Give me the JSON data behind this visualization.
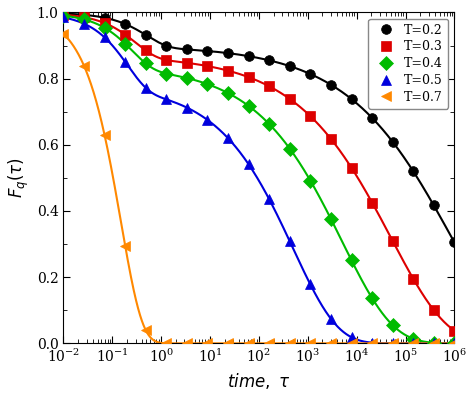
{
  "title": "",
  "xlabel": "time, \\tau",
  "ylabel": "F_q(\\tau)",
  "xlim": [
    0.01,
    1000000.0
  ],
  "ylim": [
    -0.02,
    1.05
  ],
  "series": [
    {
      "label": "T=0.2",
      "color": "#000000",
      "marker": "o",
      "tau1": 0.5,
      "beta1": 1.0,
      "f_plateau": 0.9,
      "tau2": 800000.0,
      "beta2": 0.35
    },
    {
      "label": "T=0.3",
      "color": "#dd0000",
      "marker": "s",
      "tau1": 0.3,
      "beta1": 1.0,
      "f_plateau": 0.87,
      "tau2": 50000.0,
      "beta2": 0.38
    },
    {
      "label": "T=0.4",
      "color": "#00bb00",
      "marker": "D",
      "tau1": 0.25,
      "beta1": 1.0,
      "f_plateau": 0.84,
      "tau2": 5000.0,
      "beta2": 0.42
    },
    {
      "label": "T=0.5",
      "color": "#0000dd",
      "marker": "^",
      "tau1": 0.2,
      "beta1": 1.0,
      "f_plateau": 0.78,
      "tau2": 500.0,
      "beta2": 0.48
    },
    {
      "label": "T=0.7",
      "color": "#ff8800",
      "marker": "<",
      "tau1": 0.15,
      "beta1": 1.0,
      "f_plateau": 0.0,
      "tau2": 8,
      "beta2": 0.7
    }
  ],
  "background_color": "#ffffff",
  "legend_fontsize": 9,
  "axis_fontsize": 12,
  "markersize": 7,
  "linewidth": 1.5
}
